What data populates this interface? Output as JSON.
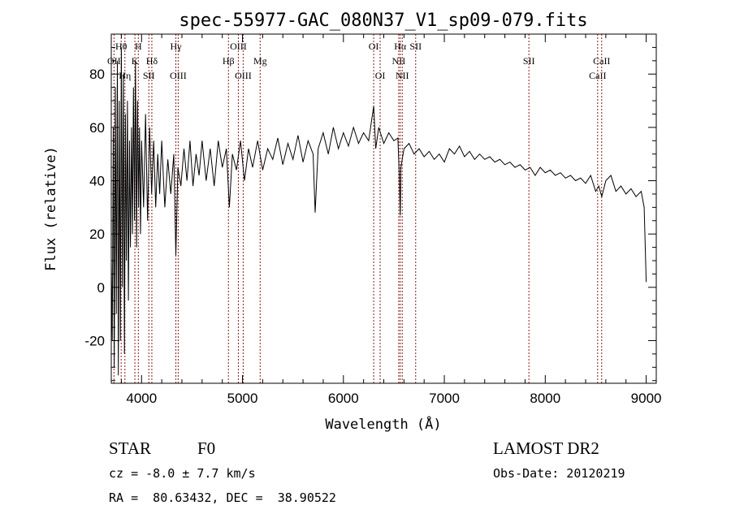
{
  "chart_data": {
    "type": "line",
    "title": "spec-55977-GAC_080N37_V1_sp09-079.fits",
    "xlabel": "Wavelength (Å)",
    "ylabel": "Flux (relative)",
    "xlim": [
      3700,
      9100
    ],
    "ylim": [
      -36,
      95
    ],
    "xticks": [
      4000,
      5000,
      6000,
      7000,
      8000,
      9000
    ],
    "yticks": [
      -20,
      0,
      20,
      40,
      60,
      80
    ],
    "grid": false,
    "series": [
      {
        "name": "spectrum",
        "color": "#000000",
        "points": [
          [
            3700,
            10
          ],
          [
            3710,
            -20
          ],
          [
            3720,
            60
          ],
          [
            3730,
            -30
          ],
          [
            3740,
            75
          ],
          [
            3750,
            -10
          ],
          [
            3760,
            85
          ],
          [
            3770,
            -33
          ],
          [
            3780,
            70
          ],
          [
            3790,
            -20
          ],
          [
            3800,
            90
          ],
          [
            3810,
            0
          ],
          [
            3820,
            80
          ],
          [
            3830,
            -25
          ],
          [
            3840,
            65
          ],
          [
            3850,
            10
          ],
          [
            3860,
            70
          ],
          [
            3870,
            -5
          ],
          [
            3880,
            55
          ],
          [
            3890,
            15
          ],
          [
            3900,
            60
          ],
          [
            3910,
            20
          ],
          [
            3920,
            75
          ],
          [
            3930,
            25
          ],
          [
            3940,
            85
          ],
          [
            3950,
            15
          ],
          [
            3960,
            70
          ],
          [
            3970,
            30
          ],
          [
            3980,
            60
          ],
          [
            3990,
            20
          ],
          [
            4000,
            55
          ],
          [
            4020,
            30
          ],
          [
            4040,
            65
          ],
          [
            4060,
            25
          ],
          [
            4080,
            60
          ],
          [
            4100,
            35
          ],
          [
            4120,
            55
          ],
          [
            4140,
            30
          ],
          [
            4160,
            50
          ],
          [
            4180,
            35
          ],
          [
            4200,
            55
          ],
          [
            4230,
            30
          ],
          [
            4260,
            48
          ],
          [
            4290,
            35
          ],
          [
            4320,
            50
          ],
          [
            4340,
            12
          ],
          [
            4360,
            45
          ],
          [
            4390,
            38
          ],
          [
            4420,
            52
          ],
          [
            4450,
            40
          ],
          [
            4480,
            55
          ],
          [
            4510,
            38
          ],
          [
            4540,
            50
          ],
          [
            4570,
            42
          ],
          [
            4600,
            55
          ],
          [
            4640,
            40
          ],
          [
            4680,
            52
          ],
          [
            4720,
            38
          ],
          [
            4760,
            55
          ],
          [
            4800,
            45
          ],
          [
            4840,
            52
          ],
          [
            4870,
            30
          ],
          [
            4900,
            50
          ],
          [
            4940,
            44
          ],
          [
            4980,
            55
          ],
          [
            5020,
            40
          ],
          [
            5060,
            52
          ],
          [
            5100,
            45
          ],
          [
            5150,
            55
          ],
          [
            5200,
            44
          ],
          [
            5250,
            52
          ],
          [
            5300,
            48
          ],
          [
            5350,
            56
          ],
          [
            5400,
            46
          ],
          [
            5450,
            54
          ],
          [
            5500,
            48
          ],
          [
            5550,
            57
          ],
          [
            5600,
            47
          ],
          [
            5650,
            55
          ],
          [
            5700,
            50
          ],
          [
            5720,
            28
          ],
          [
            5750,
            52
          ],
          [
            5800,
            58
          ],
          [
            5850,
            50
          ],
          [
            5900,
            60
          ],
          [
            5950,
            52
          ],
          [
            6000,
            58
          ],
          [
            6050,
            53
          ],
          [
            6100,
            60
          ],
          [
            6150,
            54
          ],
          [
            6200,
            58
          ],
          [
            6250,
            55
          ],
          [
            6300,
            68
          ],
          [
            6320,
            52
          ],
          [
            6350,
            60
          ],
          [
            6400,
            54
          ],
          [
            6450,
            58
          ],
          [
            6500,
            55
          ],
          [
            6540,
            56
          ],
          [
            6555,
            40
          ],
          [
            6563,
            27
          ],
          [
            6570,
            45
          ],
          [
            6600,
            52
          ],
          [
            6650,
            54
          ],
          [
            6700,
            50
          ],
          [
            6750,
            52
          ],
          [
            6800,
            49
          ],
          [
            6850,
            51
          ],
          [
            6900,
            48
          ],
          [
            6950,
            50
          ],
          [
            7000,
            47
          ],
          [
            7050,
            52
          ],
          [
            7100,
            50
          ],
          [
            7150,
            53
          ],
          [
            7200,
            49
          ],
          [
            7250,
            51
          ],
          [
            7300,
            48
          ],
          [
            7350,
            50
          ],
          [
            7400,
            48
          ],
          [
            7450,
            49
          ],
          [
            7500,
            47
          ],
          [
            7550,
            48
          ],
          [
            7600,
            46
          ],
          [
            7650,
            47
          ],
          [
            7700,
            45
          ],
          [
            7750,
            46
          ],
          [
            7800,
            44
          ],
          [
            7850,
            45
          ],
          [
            7900,
            42
          ],
          [
            7950,
            45
          ],
          [
            8000,
            43
          ],
          [
            8050,
            44
          ],
          [
            8100,
            42
          ],
          [
            8150,
            43
          ],
          [
            8200,
            41
          ],
          [
            8250,
            42
          ],
          [
            8300,
            40
          ],
          [
            8350,
            41
          ],
          [
            8400,
            39
          ],
          [
            8450,
            42
          ],
          [
            8500,
            36
          ],
          [
            8530,
            38
          ],
          [
            8560,
            34
          ],
          [
            8600,
            40
          ],
          [
            8650,
            42
          ],
          [
            8700,
            36
          ],
          [
            8750,
            38
          ],
          [
            8800,
            35
          ],
          [
            8850,
            37
          ],
          [
            8900,
            34
          ],
          [
            8950,
            36
          ],
          [
            8980,
            30
          ],
          [
            9000,
            2
          ]
        ]
      }
    ],
    "line_marker_color": "#8b1a1a",
    "spectral_lines": [
      {
        "label": "OII",
        "wave": 3727,
        "row": 2
      },
      {
        "label": "Hθ",
        "wave": 3798,
        "row": 1
      },
      {
        "label": "Hη",
        "wave": 3835,
        "row": 3
      },
      {
        "label": "K",
        "wave": 3934,
        "row": 2
      },
      {
        "label": "H",
        "wave": 3968,
        "row": 1
      },
      {
        "label": "SII",
        "wave": 4072,
        "row": 3
      },
      {
        "label": "Hδ",
        "wave": 4102,
        "row": 2
      },
      {
        "label": "Hγ",
        "wave": 4340,
        "row": 1
      },
      {
        "label": "OIII",
        "wave": 4363,
        "row": 3
      },
      {
        "label": "Hβ",
        "wave": 4861,
        "row": 2
      },
      {
        "label": "OIII",
        "wave": 4959,
        "row": 1
      },
      {
        "label": "OIII",
        "wave": 5007,
        "row": 3
      },
      {
        "label": "Mg",
        "wave": 5175,
        "row": 2
      },
      {
        "label": "OI",
        "wave": 6300,
        "row": 1
      },
      {
        "label": "OI",
        "wave": 6364,
        "row": 3
      },
      {
        "label": "NII",
        "wave": 6548,
        "row": 2
      },
      {
        "label": "Hα",
        "wave": 6563,
        "row": 1
      },
      {
        "label": "NII",
        "wave": 6583,
        "row": 3
      },
      {
        "label": "SII",
        "wave": 6716,
        "row": 1
      },
      {
        "label": "SII",
        "wave": 7838,
        "row": 2
      },
      {
        "label": "CaII",
        "wave": 8519,
        "row": 3
      },
      {
        "label": "CaII",
        "wave": 8559,
        "row": 2
      }
    ]
  },
  "info": {
    "class": "STAR",
    "subclass": "F0",
    "survey": "LAMOST DR2",
    "cz": "cz = -8.0 ± 7.7 km/s",
    "obs_date": "Obs-Date: 20120219",
    "coords": "RA =  80.63432, DEC =  38.90522"
  }
}
